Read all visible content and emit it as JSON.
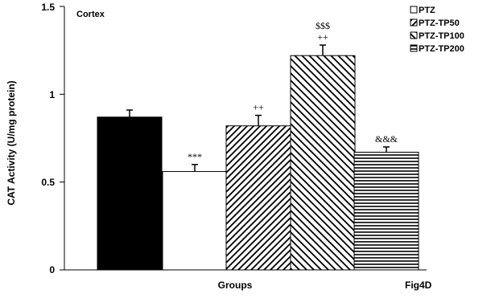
{
  "chart_data": {
    "type": "bar",
    "panel_label": "Cortex",
    "figure_label": "Fig4D",
    "xlabel": "Groups",
    "ylabel": "CAT Activity (U/mg protein)",
    "ylim": [
      0,
      1.5
    ],
    "yticks": [
      "0",
      "0.5",
      "1",
      "1.5"
    ],
    "grid": false,
    "legend_position": "top-right",
    "bars": [
      {
        "value": 0.87,
        "error": 0.04,
        "fill": "solid-black",
        "legend": "",
        "annotations": []
      },
      {
        "value": 0.56,
        "error": 0.04,
        "fill": "white",
        "legend": "PTZ",
        "annotations": [
          "***"
        ]
      },
      {
        "value": 0.82,
        "error": 0.06,
        "fill": "hatch-forward",
        "legend": "PTZ-TP50",
        "annotations": [
          "++"
        ]
      },
      {
        "value": 1.22,
        "error": 0.06,
        "fill": "hatch-back",
        "legend": "PTZ-TP100",
        "annotations": [
          "$$$",
          "++"
        ]
      },
      {
        "value": 0.67,
        "error": 0.03,
        "fill": "hatch-horizontal",
        "legend": "PTZ-TP200",
        "annotations": [
          "&&&"
        ]
      }
    ]
  },
  "colors": {
    "ink": "#000000",
    "background": "#ffffff"
  }
}
